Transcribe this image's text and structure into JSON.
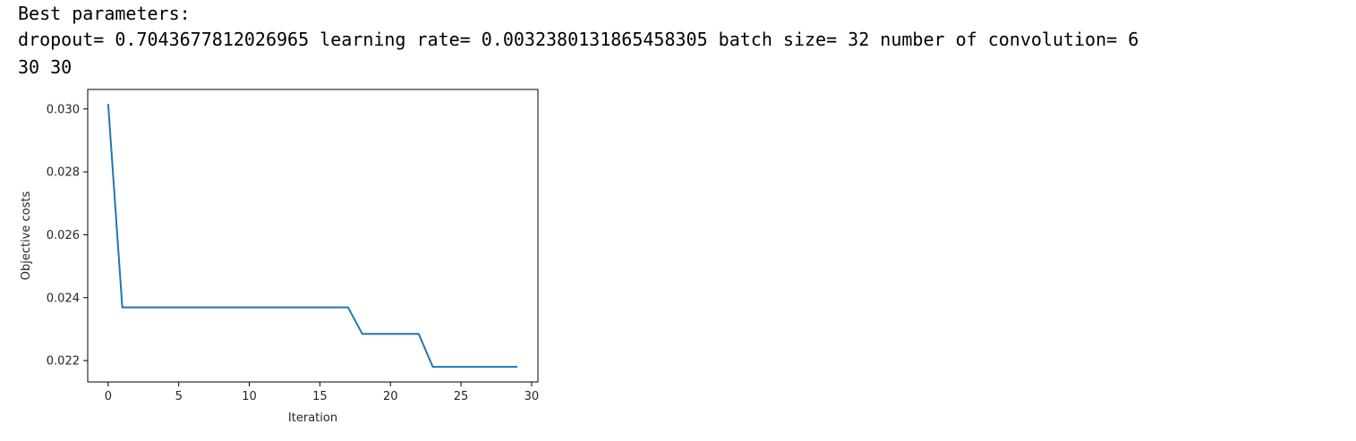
{
  "cell_output": {
    "line1": "Best parameters:",
    "line2": "dropout= 0.7043677812026965 learning rate= 0.0032380131865458305 batch size= 32 number of convolution= 6",
    "line3": "30 30"
  },
  "colors": {
    "series": "#1f77b4",
    "axis": "#000000",
    "text": "#262626"
  },
  "chart_data": {
    "type": "line",
    "title": "",
    "xlabel": "Iteration",
    "ylabel": "Objective costs",
    "xlim": [
      -1.45,
      30.45
    ],
    "ylim": [
      0.02132,
      0.03062
    ],
    "xticks": [
      0,
      5,
      10,
      15,
      20,
      25,
      30
    ],
    "yticks": [
      0.022,
      0.024,
      0.026,
      0.028,
      0.03
    ],
    "ytick_labels": [
      "0.022",
      "0.024",
      "0.026",
      "0.028",
      "0.030"
    ],
    "grid": false,
    "legend": "none",
    "series": [
      {
        "x": [
          0,
          1,
          2,
          3,
          4,
          5,
          6,
          7,
          8,
          9,
          10,
          11,
          12,
          13,
          14,
          15,
          16,
          17,
          18,
          19,
          20,
          21,
          22,
          23,
          24,
          25,
          26,
          27,
          28,
          29
        ],
        "y": [
          0.03016,
          0.02369,
          0.02369,
          0.02369,
          0.02369,
          0.02369,
          0.02369,
          0.02369,
          0.02369,
          0.02369,
          0.02369,
          0.02369,
          0.02369,
          0.02369,
          0.02369,
          0.02369,
          0.02369,
          0.02369,
          0.02285,
          0.02285,
          0.02285,
          0.02285,
          0.02285,
          0.0218,
          0.0218,
          0.0218,
          0.0218,
          0.0218,
          0.0218,
          0.0218
        ]
      }
    ]
  }
}
